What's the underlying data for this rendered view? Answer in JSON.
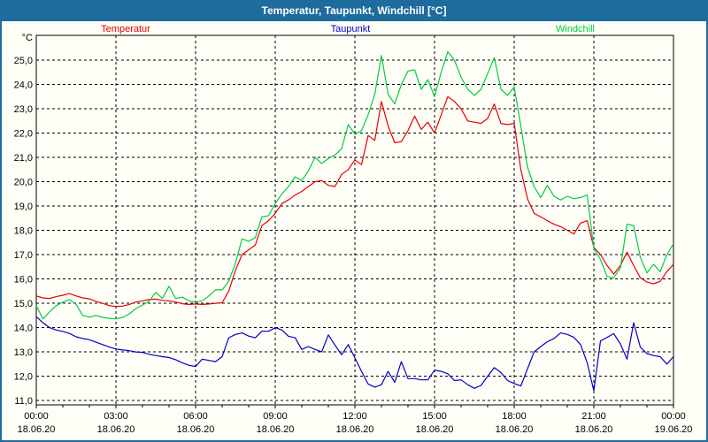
{
  "window": {
    "title": "Temperatur, Taupunkt, Windchill [°C]"
  },
  "chart_data": {
    "type": "line",
    "title": "Temperatur, Taupunkt, Windchill [°C]",
    "unit_label": "°C",
    "colors": {
      "frame": "#1e6b9e",
      "titlebar_text": "#ffffff",
      "background": "#fffef6",
      "grid": "#000000",
      "temperatur": "#e30000",
      "taupunkt": "#0000cd",
      "windchill": "#00cc44"
    },
    "legend": [
      {
        "label": "Temperatur",
        "color": "#e30000"
      },
      {
        "label": "Taupunkt",
        "color": "#0000cd"
      },
      {
        "label": "Windchill",
        "color": "#00cc44"
      }
    ],
    "x_start_hours": 0,
    "x_step_hours": 0.25,
    "x_range_hours": [
      0,
      24
    ],
    "ylim": [
      10.82,
      26.02
    ],
    "grid": "dashed",
    "legend_position": "top",
    "y_ticks": [
      {
        "value": 25,
        "label": "25,0"
      },
      {
        "value": 24,
        "label": "24,0"
      },
      {
        "value": 23,
        "label": "23,0"
      },
      {
        "value": 22,
        "label": "22,0"
      },
      {
        "value": 21,
        "label": "21,0"
      },
      {
        "value": 20,
        "label": "20,0"
      },
      {
        "value": 19,
        "label": "19,0"
      },
      {
        "value": 18,
        "label": "18,0"
      },
      {
        "value": 17,
        "label": "17,0"
      },
      {
        "value": 16,
        "label": "16,0"
      },
      {
        "value": 15,
        "label": "15,0"
      },
      {
        "value": 14,
        "label": "14,0"
      },
      {
        "value": 13,
        "label": "13,0"
      },
      {
        "value": 12,
        "label": "12,0"
      },
      {
        "value": 11,
        "label": "11,0"
      }
    ],
    "x_ticks": [
      {
        "hours": 0,
        "time": "00:00",
        "date": "18.06.20"
      },
      {
        "hours": 3,
        "time": "03:00",
        "date": "18.06.20"
      },
      {
        "hours": 6,
        "time": "06:00",
        "date": "18.06.20"
      },
      {
        "hours": 9,
        "time": "09:00",
        "date": "18.06.20"
      },
      {
        "hours": 12,
        "time": "12:00",
        "date": "18.06.20"
      },
      {
        "hours": 15,
        "time": "15:00",
        "date": "18.06.20"
      },
      {
        "hours": 18,
        "time": "18:00",
        "date": "18.06.20"
      },
      {
        "hours": 21,
        "time": "21:00",
        "date": "18.06.20"
      },
      {
        "hours": 24,
        "time": "00:00",
        "date": "19.06.20"
      }
    ],
    "series": [
      {
        "name": "Temperatur",
        "color": "#e30000",
        "values": [
          15.3,
          15.22,
          15.2,
          15.27,
          15.33,
          15.4,
          15.3,
          15.22,
          15.18,
          15.08,
          15.0,
          14.9,
          14.87,
          14.88,
          14.95,
          15.05,
          15.1,
          15.15,
          15.17,
          15.12,
          15.1,
          15.05,
          14.98,
          14.95,
          14.97,
          14.95,
          14.97,
          15.0,
          15.02,
          15.5,
          16.35,
          17.0,
          17.2,
          17.4,
          18.2,
          18.4,
          18.7,
          19.1,
          19.25,
          19.45,
          19.6,
          19.8,
          20.0,
          20.05,
          19.85,
          19.8,
          20.3,
          20.5,
          20.9,
          20.7,
          21.9,
          21.7,
          23.3,
          22.3,
          21.6,
          21.65,
          22.1,
          22.7,
          22.15,
          22.45,
          22.0,
          22.75,
          23.5,
          23.3,
          23.0,
          22.5,
          22.45,
          22.4,
          22.6,
          23.2,
          22.4,
          22.35,
          22.4,
          20.5,
          19.3,
          18.7,
          18.55,
          18.4,
          18.25,
          18.15,
          18.0,
          17.85,
          18.3,
          18.4,
          17.3,
          17.0,
          16.55,
          16.2,
          16.55,
          17.1,
          16.55,
          16.05,
          15.87,
          15.8,
          15.9,
          16.3,
          16.6
        ]
      },
      {
        "name": "Taupunkt",
        "color": "#0000cd",
        "values": [
          14.45,
          14.2,
          14.0,
          13.9,
          13.84,
          13.76,
          13.62,
          13.55,
          13.5,
          13.4,
          13.3,
          13.2,
          13.12,
          13.08,
          13.05,
          13.0,
          12.98,
          12.9,
          12.85,
          12.8,
          12.77,
          12.68,
          12.55,
          12.45,
          12.4,
          12.7,
          12.65,
          12.6,
          12.8,
          13.58,
          13.72,
          13.78,
          13.65,
          13.58,
          13.85,
          13.85,
          14.0,
          13.9,
          13.64,
          13.58,
          13.1,
          13.22,
          13.1,
          13.0,
          13.7,
          13.28,
          12.88,
          13.3,
          12.75,
          12.2,
          11.68,
          11.55,
          11.65,
          12.2,
          11.75,
          12.6,
          11.9,
          11.9,
          11.85,
          11.85,
          12.25,
          12.2,
          12.1,
          11.82,
          11.85,
          11.65,
          11.5,
          11.62,
          12.0,
          12.35,
          12.15,
          11.82,
          11.7,
          11.6,
          12.3,
          13.0,
          13.22,
          13.42,
          13.55,
          13.78,
          13.72,
          13.6,
          13.3,
          12.55,
          11.4,
          13.45,
          13.6,
          13.75,
          13.33,
          12.7,
          14.2,
          13.2,
          12.93,
          12.85,
          12.8,
          12.5,
          12.8
        ]
      },
      {
        "name": "Windchill",
        "color": "#00cc44",
        "values": [
          14.9,
          14.35,
          14.65,
          14.9,
          15.05,
          15.15,
          14.95,
          14.5,
          14.43,
          14.5,
          14.42,
          14.38,
          14.36,
          14.42,
          14.56,
          14.78,
          14.93,
          15.08,
          15.45,
          15.2,
          15.7,
          15.2,
          15.25,
          15.1,
          15.05,
          15.1,
          15.3,
          15.55,
          15.55,
          15.9,
          16.65,
          17.65,
          17.55,
          17.7,
          18.55,
          18.6,
          19.1,
          19.5,
          19.8,
          20.2,
          20.05,
          20.45,
          21.0,
          20.75,
          20.95,
          21.1,
          21.35,
          22.35,
          21.95,
          22.1,
          22.75,
          23.6,
          25.2,
          23.6,
          23.2,
          24.0,
          24.55,
          24.6,
          23.8,
          24.2,
          23.5,
          24.5,
          25.35,
          25.0,
          24.3,
          23.8,
          23.55,
          23.8,
          24.45,
          25.1,
          23.8,
          23.55,
          23.9,
          22.3,
          20.6,
          19.8,
          19.35,
          19.85,
          19.4,
          19.25,
          19.4,
          19.3,
          19.35,
          19.45,
          17.25,
          16.8,
          16.1,
          16.05,
          16.45,
          18.25,
          18.2,
          16.9,
          16.25,
          16.6,
          16.3,
          17.0,
          17.45
        ]
      }
    ]
  }
}
